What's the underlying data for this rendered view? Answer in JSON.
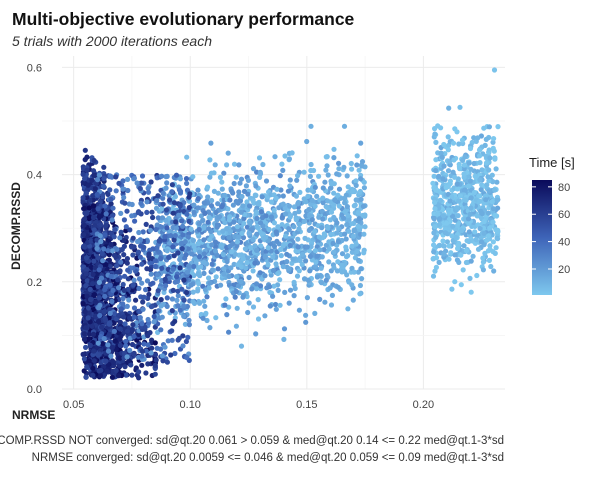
{
  "chart_data": {
    "type": "scatter",
    "title": "Multi-objective evolutionary performance",
    "subtitle": "5 trials with 2000 iterations each",
    "xlabel": "NRMSE",
    "ylabel": "DECOMP.RSSD",
    "xlim": [
      0.045,
      0.235
    ],
    "ylim": [
      0.0,
      0.61
    ],
    "x_ticks": [
      0.05,
      0.1,
      0.15,
      0.2
    ],
    "x_tick_labels": [
      "0.05",
      "0.10",
      "0.15",
      "0.20"
    ],
    "y_ticks": [
      0.0,
      0.2,
      0.4,
      0.6
    ],
    "y_tick_labels": [
      "0.0",
      "0.2",
      "0.4",
      "0.6"
    ],
    "grid": true,
    "color_legend": {
      "title": "Time [s]",
      "position": "right",
      "range": [
        1,
        85
      ],
      "ticks": [
        20,
        40,
        60,
        80
      ],
      "tick_labels": [
        "20",
        "40",
        "60",
        "80"
      ],
      "low_color": "#7ec8ee",
      "high_color": "#0a0a5a"
    },
    "points_summary": {
      "count": 10000,
      "nrmse_range": [
        0.053,
        0.232
      ],
      "rssd_range": [
        0.02,
        0.595
      ],
      "clusters": [
        {
          "nrmse": [
            0.053,
            0.085
          ],
          "rssd": [
            0.02,
            0.45
          ],
          "time_range": [
            40,
            85
          ]
        },
        {
          "nrmse": [
            0.085,
            0.175
          ],
          "rssd": [
            0.08,
            0.49
          ],
          "time_range": [
            5,
            40
          ]
        },
        {
          "nrmse": [
            0.204,
            0.232
          ],
          "rssd": [
            0.16,
            0.595
          ],
          "time_range": [
            1,
            15
          ]
        }
      ]
    },
    "captions": [
      "DECOMP.RSSD NOT converged: sd@qt.20 0.061 > 0.059 & med@qt.20 0.14 <= 0.22 med@qt.1-3*sd",
      "NRMSE converged: sd@qt.20 0.0059 <= 0.046 & med@qt.20 0.059 <= 0.09 med@qt.1-3*sd"
    ]
  }
}
